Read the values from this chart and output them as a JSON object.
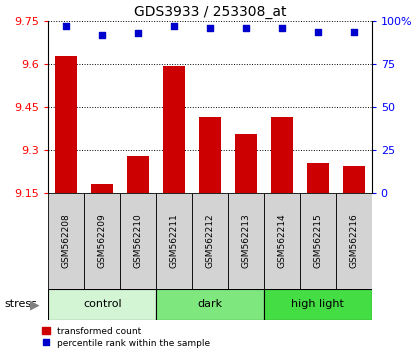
{
  "title": "GDS3933 / 253308_at",
  "samples": [
    "GSM562208",
    "GSM562209",
    "GSM562210",
    "GSM562211",
    "GSM562212",
    "GSM562213",
    "GSM562214",
    "GSM562215",
    "GSM562216"
  ],
  "red_values": [
    9.63,
    9.18,
    9.28,
    9.595,
    9.415,
    9.355,
    9.415,
    9.255,
    9.245
  ],
  "blue_values": [
    97,
    92,
    93,
    97,
    96,
    96,
    96,
    94,
    94
  ],
  "ylim_left": [
    9.15,
    9.75
  ],
  "ylim_right": [
    0,
    100
  ],
  "yticks_left": [
    9.15,
    9.3,
    9.45,
    9.6,
    9.75
  ],
  "yticks_right": [
    0,
    25,
    50,
    75,
    100
  ],
  "yticklabels_right": [
    "0",
    "25",
    "50",
    "75",
    "100%"
  ],
  "groups": [
    {
      "label": "control",
      "start": 0,
      "end": 3,
      "color": "#d4f5d4"
    },
    {
      "label": "dark",
      "start": 3,
      "end": 6,
      "color": "#7ee87e"
    },
    {
      "label": "high light",
      "start": 6,
      "end": 9,
      "color": "#44dd44"
    }
  ],
  "group_row_color": "#d3d3d3",
  "bar_color": "#cc0000",
  "dot_color": "#0000cc",
  "baseline": 9.15,
  "stress_label": "stress",
  "legend_red": "transformed count",
  "legend_blue": "percentile rank within the sample",
  "title_fontsize": 10,
  "tick_fontsize": 8,
  "label_fontsize": 7,
  "bar_width": 0.6
}
